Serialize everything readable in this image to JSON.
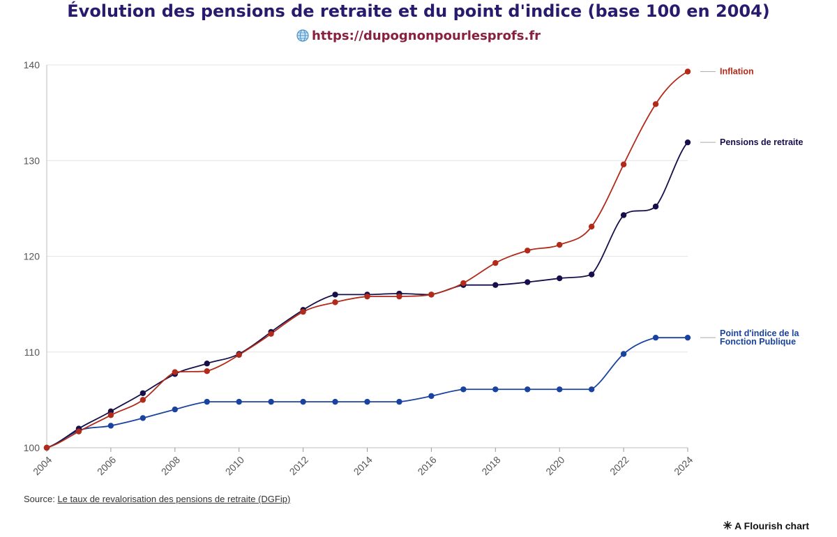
{
  "title": "Évolution des pensions de retraite et du point d'indice (base 100 en 2004)",
  "subtitle": "https://dupognonpourlesprofs.fr",
  "source_label": "Source:",
  "source_link": "Le taux de revalorisation des pensions de retraite (DGFip)",
  "credit": "A Flourish chart",
  "icons": {
    "subtitle": "globe-icon",
    "credit": "flourish-asterisk-icon"
  },
  "chart_data": {
    "type": "line",
    "title": "Évolution des pensions de retraite et du point d'indice (base 100 en 2004)",
    "xlabel": "",
    "ylabel": "",
    "x": [
      2004,
      2005,
      2006,
      2007,
      2008,
      2009,
      2010,
      2011,
      2012,
      2013,
      2014,
      2015,
      2016,
      2017,
      2018,
      2019,
      2020,
      2021,
      2022,
      2023,
      2024
    ],
    "x_ticks": [
      "2004",
      "2006",
      "2008",
      "2010",
      "2012",
      "2014",
      "2016",
      "2018",
      "2020",
      "2022",
      "2024"
    ],
    "y_ticks": [
      "100",
      "110",
      "120",
      "130",
      "140"
    ],
    "ylim": [
      100,
      140
    ],
    "grid": "horizontal",
    "legend": "direct labels at line ends (right)",
    "series": [
      {
        "name": "Inflation",
        "color": "#b12a1a",
        "values": [
          100,
          101.7,
          103.4,
          105.0,
          107.9,
          108.0,
          109.7,
          111.9,
          114.2,
          115.2,
          115.8,
          115.8,
          116.0,
          117.2,
          119.3,
          120.6,
          121.2,
          123.1,
          129.6,
          135.9,
          139.3
        ]
      },
      {
        "name": "Pensions de retraite",
        "color": "#160f4a",
        "values": [
          100,
          102.0,
          103.8,
          105.7,
          107.7,
          108.8,
          109.8,
          112.1,
          114.4,
          116.0,
          116.0,
          116.1,
          116.0,
          117.0,
          117.0,
          117.3,
          117.7,
          118.1,
          124.3,
          125.2,
          131.9
        ]
      },
      {
        "name": "Point d'indice de la Fonction Publique",
        "color": "#1a43a0",
        "values": [
          100,
          101.8,
          102.3,
          103.1,
          104.0,
          104.8,
          104.8,
          104.8,
          104.8,
          104.8,
          104.8,
          104.8,
          105.4,
          106.1,
          106.1,
          106.1,
          106.1,
          106.1,
          109.8,
          111.5,
          111.5
        ]
      }
    ]
  }
}
